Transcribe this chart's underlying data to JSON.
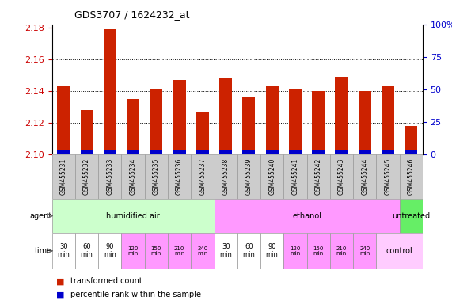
{
  "title": "GDS3707 / 1624232_at",
  "samples": [
    "GSM455231",
    "GSM455232",
    "GSM455233",
    "GSM455234",
    "GSM455235",
    "GSM455236",
    "GSM455237",
    "GSM455238",
    "GSM455239",
    "GSM455240",
    "GSM455241",
    "GSM455242",
    "GSM455243",
    "GSM455244",
    "GSM455245",
    "GSM455246"
  ],
  "transformed_count": [
    2.143,
    2.128,
    2.179,
    2.135,
    2.141,
    2.147,
    2.127,
    2.148,
    2.136,
    2.143,
    2.141,
    2.14,
    2.149,
    2.14,
    2.143,
    2.118
  ],
  "base_value": 2.1,
  "ylim_min": 2.1,
  "ylim_max": 2.182,
  "yticks": [
    2.1,
    2.12,
    2.14,
    2.16,
    2.18
  ],
  "right_yticks": [
    0,
    25,
    50,
    75,
    100
  ],
  "agent_groups": [
    {
      "label": "humidified air",
      "start": 0,
      "end": 7,
      "color": "#ccffcc"
    },
    {
      "label": "ethanol",
      "start": 7,
      "end": 15,
      "color": "#ff99ff"
    },
    {
      "label": "untreated",
      "start": 15,
      "end": 16,
      "color": "#66ee66"
    }
  ],
  "time_cell_colors": [
    "#ffffff",
    "#ffffff",
    "#ffffff",
    "#ff99ff",
    "#ff99ff",
    "#ff99ff",
    "#ff99ff",
    "#ffffff",
    "#ffffff",
    "#ffffff",
    "#ff99ff",
    "#ff99ff",
    "#ff99ff",
    "#ff99ff"
  ],
  "time_texts": [
    "30\nmin",
    "60\nmin",
    "90\nmin",
    "120\nmin",
    "150\nmin",
    "210\nmin",
    "240\nmin",
    "30\nmin",
    "60\nmin",
    "90\nmin",
    "120\nmin",
    "150\nmin",
    "210\nmin",
    "240\nmin"
  ],
  "control_color": "#ffccff",
  "control_label": "control",
  "agent_label": "agent",
  "time_label": "time",
  "bar_color_red": "#cc2200",
  "bar_color_blue": "#0000cc",
  "blue_bar_height": 0.003,
  "background_color": "#ffffff",
  "tick_color_left": "#cc0000",
  "tick_color_right": "#0000cc",
  "sample_bg_color": "#cccccc",
  "grid_color": "#000000"
}
